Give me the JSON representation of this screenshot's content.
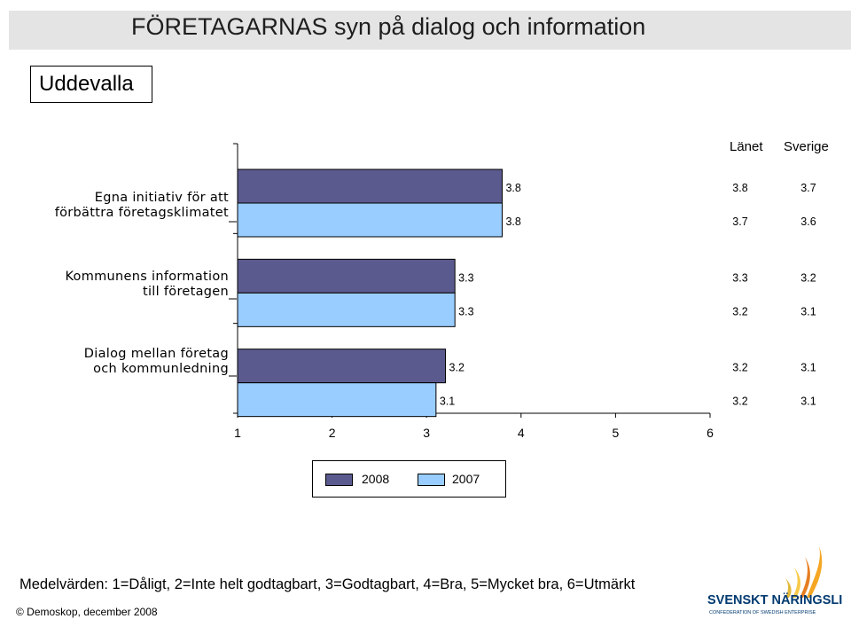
{
  "header": {
    "title": "FÖRETAGARNAS syn på dialog och information",
    "region": "Uddevalla"
  },
  "columns": {
    "lan": "Länet",
    "sverige": "Sverige"
  },
  "chart_data": {
    "type": "bar",
    "orientation": "horizontal",
    "xlim": [
      1,
      6
    ],
    "x_ticks": [
      "1",
      "2",
      "3",
      "4",
      "5",
      "6"
    ],
    "grid": false,
    "legend_position": "bottom",
    "categories": [
      [
        "Egna initiativ för att",
        "förbättra företagsklimatet"
      ],
      [
        "Kommunens information",
        "till företagen"
      ],
      [
        "Dialog mellan företag",
        "och kommunledning"
      ]
    ],
    "series": [
      {
        "name": "2008",
        "color": "#5b5a8e",
        "values": [
          3.8,
          3.3,
          3.2
        ],
        "lan": [
          3.8,
          3.3,
          3.2
        ],
        "sverige": [
          3.7,
          3.2,
          3.1
        ]
      },
      {
        "name": "2007",
        "color": "#99ccff",
        "values": [
          3.8,
          3.3,
          3.1
        ],
        "lan": [
          3.7,
          3.2,
          3.2
        ],
        "sverige": [
          3.6,
          3.1,
          3.1
        ]
      }
    ]
  },
  "footnote": "Medelvärden: 1=Dåligt, 2=Inte helt godtagbart, 3=Godtagbart, 4=Bra, 5=Mycket bra, 6=Utmärkt",
  "copyright": "© Demoskop, december 2008",
  "logo": {
    "name": "SVENSKT NÄRINGSLIV",
    "subtitle": "CONFEDERATION OF SWEDISH ENTERPRISE"
  }
}
